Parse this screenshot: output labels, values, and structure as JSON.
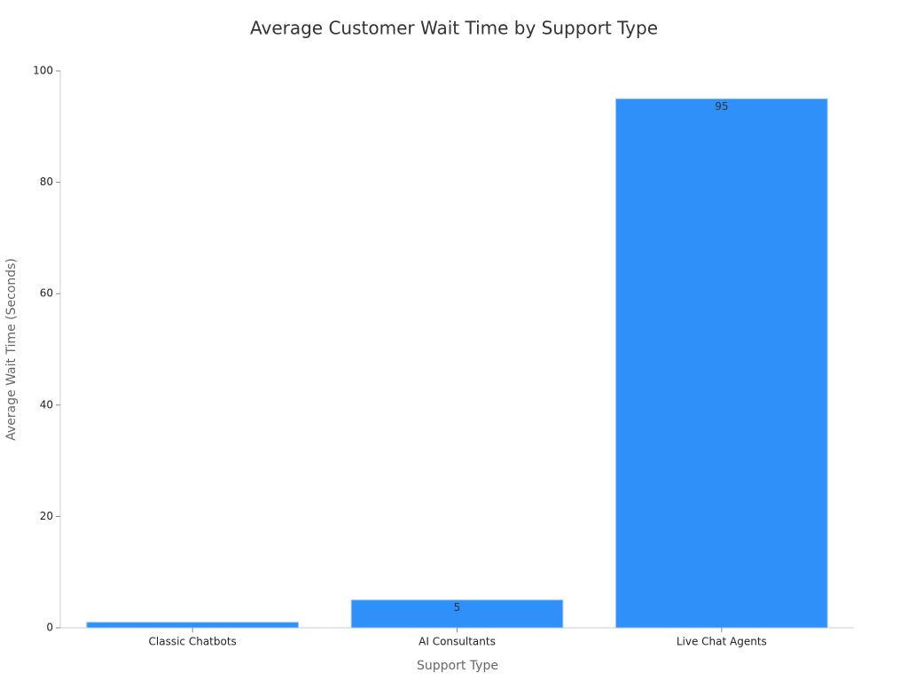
{
  "chart_data": {
    "type": "bar",
    "title": "Average Customer Wait Time by Support Type",
    "x_label": "Support Type",
    "y_label": "Average Wait Time (Seconds)",
    "categories": [
      "Classic Chatbots",
      "AI Consultants",
      "Live Chat Agents"
    ],
    "values": [
      1,
      5,
      95
    ],
    "color": "#2e90f8",
    "ylim": [
      0,
      100
    ],
    "yticks": [
      0,
      20,
      40,
      60,
      80,
      100
    ],
    "grid": false
  }
}
